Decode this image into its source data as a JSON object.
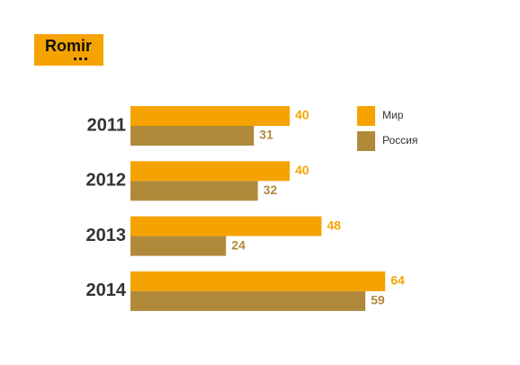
{
  "logo": "Romir",
  "chart_data": {
    "type": "bar",
    "orientation": "horizontal",
    "categories": [
      "2011",
      "2012",
      "2013",
      "2014"
    ],
    "series": [
      {
        "name": "Мир",
        "color": "#f5a300",
        "values": [
          40,
          40,
          48,
          64
        ]
      },
      {
        "name": "Россия",
        "color": "#b08a3a",
        "values": [
          31,
          32,
          24,
          59
        ]
      }
    ],
    "legend": "top-right"
  }
}
